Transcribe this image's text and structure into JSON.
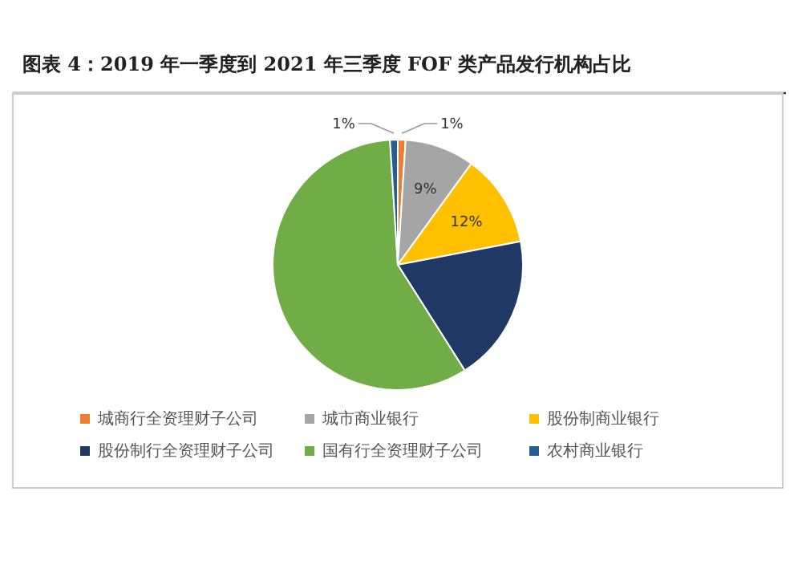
{
  "chart_data": {
    "type": "pie",
    "title": "图表 4：2019 年一季度到 2021 年三季度 FOF 类产品发行机构占比",
    "categories": [
      "城商行全资理财子公司",
      "城市商业银行",
      "股份制商业银行",
      "股份制行全资理财子公司",
      "国有行全资理财子公司",
      "农村商业银行"
    ],
    "values": [
      1,
      9,
      12,
      19,
      58,
      1
    ],
    "colors": [
      "#ed7d31",
      "#a5a5a5",
      "#ffc000",
      "#203864",
      "#70ad47",
      "#255e91"
    ],
    "value_labels": [
      "1%",
      "9%",
      "12%",
      null,
      null,
      "1%"
    ],
    "legend": "bottom"
  }
}
